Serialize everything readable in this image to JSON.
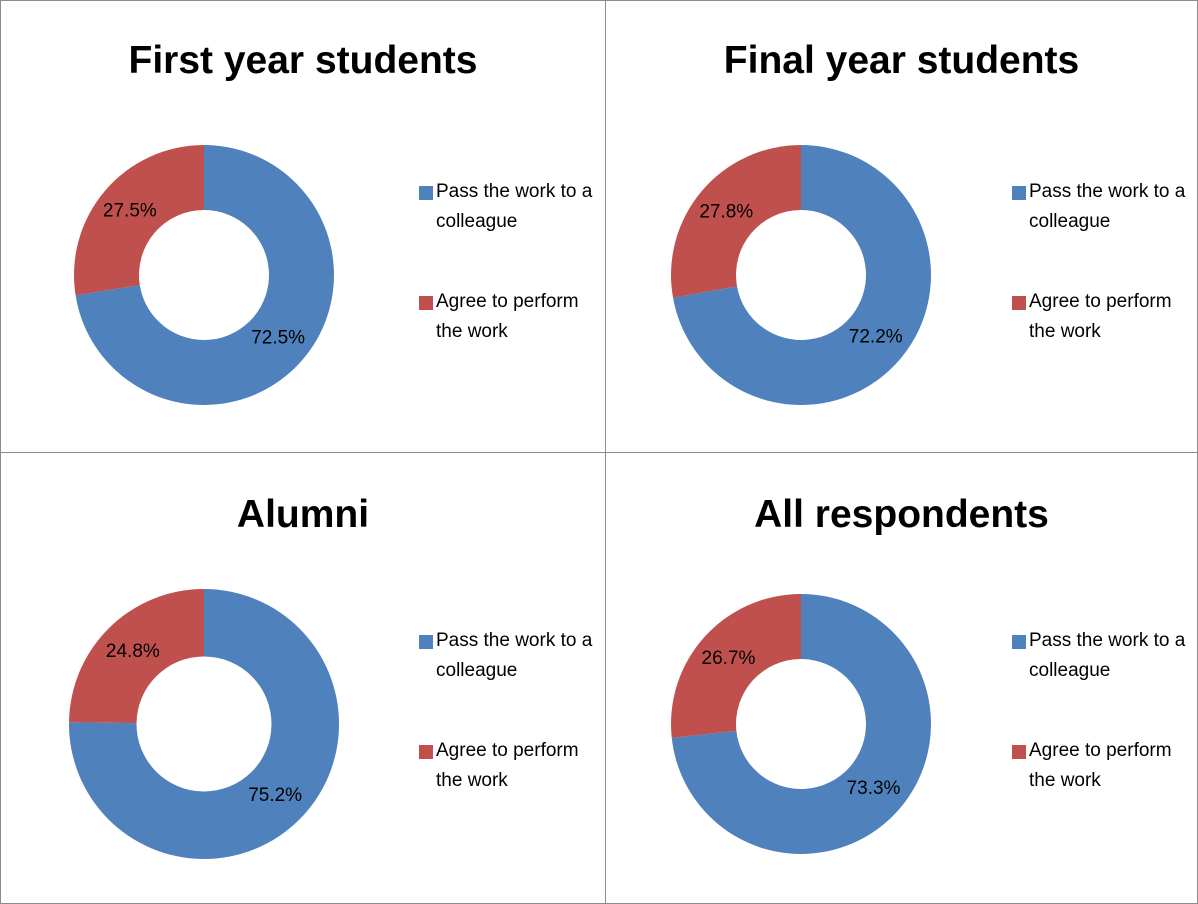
{
  "chart_data": [
    {
      "type": "pie",
      "title": "First year students",
      "categories": [
        "Pass the work to a colleague",
        "Agree to perform the work"
      ],
      "values": [
        72.5,
        27.5
      ],
      "value_labels": [
        "72.5%",
        "27.5%"
      ],
      "colors": [
        "#4f81bd",
        "#c0504d"
      ]
    },
    {
      "type": "pie",
      "title": "Final year students",
      "categories": [
        "Pass the work to a colleague",
        "Agree to perform the work"
      ],
      "values": [
        72.2,
        27.8
      ],
      "value_labels": [
        "72.2%",
        "27.8%"
      ],
      "colors": [
        "#4f81bd",
        "#c0504d"
      ]
    },
    {
      "type": "pie",
      "title": "Alumni",
      "categories": [
        "Pass the work to a colleague",
        "Agree to perform the work"
      ],
      "values": [
        75.2,
        24.8
      ],
      "value_labels": [
        "75.2%",
        "24.8%"
      ],
      "colors": [
        "#4f81bd",
        "#c0504d"
      ]
    },
    {
      "type": "pie",
      "title": "All respondents",
      "categories": [
        "Pass the work to a colleague",
        "Agree to perform the work"
      ],
      "values": [
        73.3,
        26.7
      ],
      "value_labels": [
        "73.3%",
        "26.7%"
      ],
      "colors": [
        "#4f81bd",
        "#c0504d"
      ]
    }
  ]
}
